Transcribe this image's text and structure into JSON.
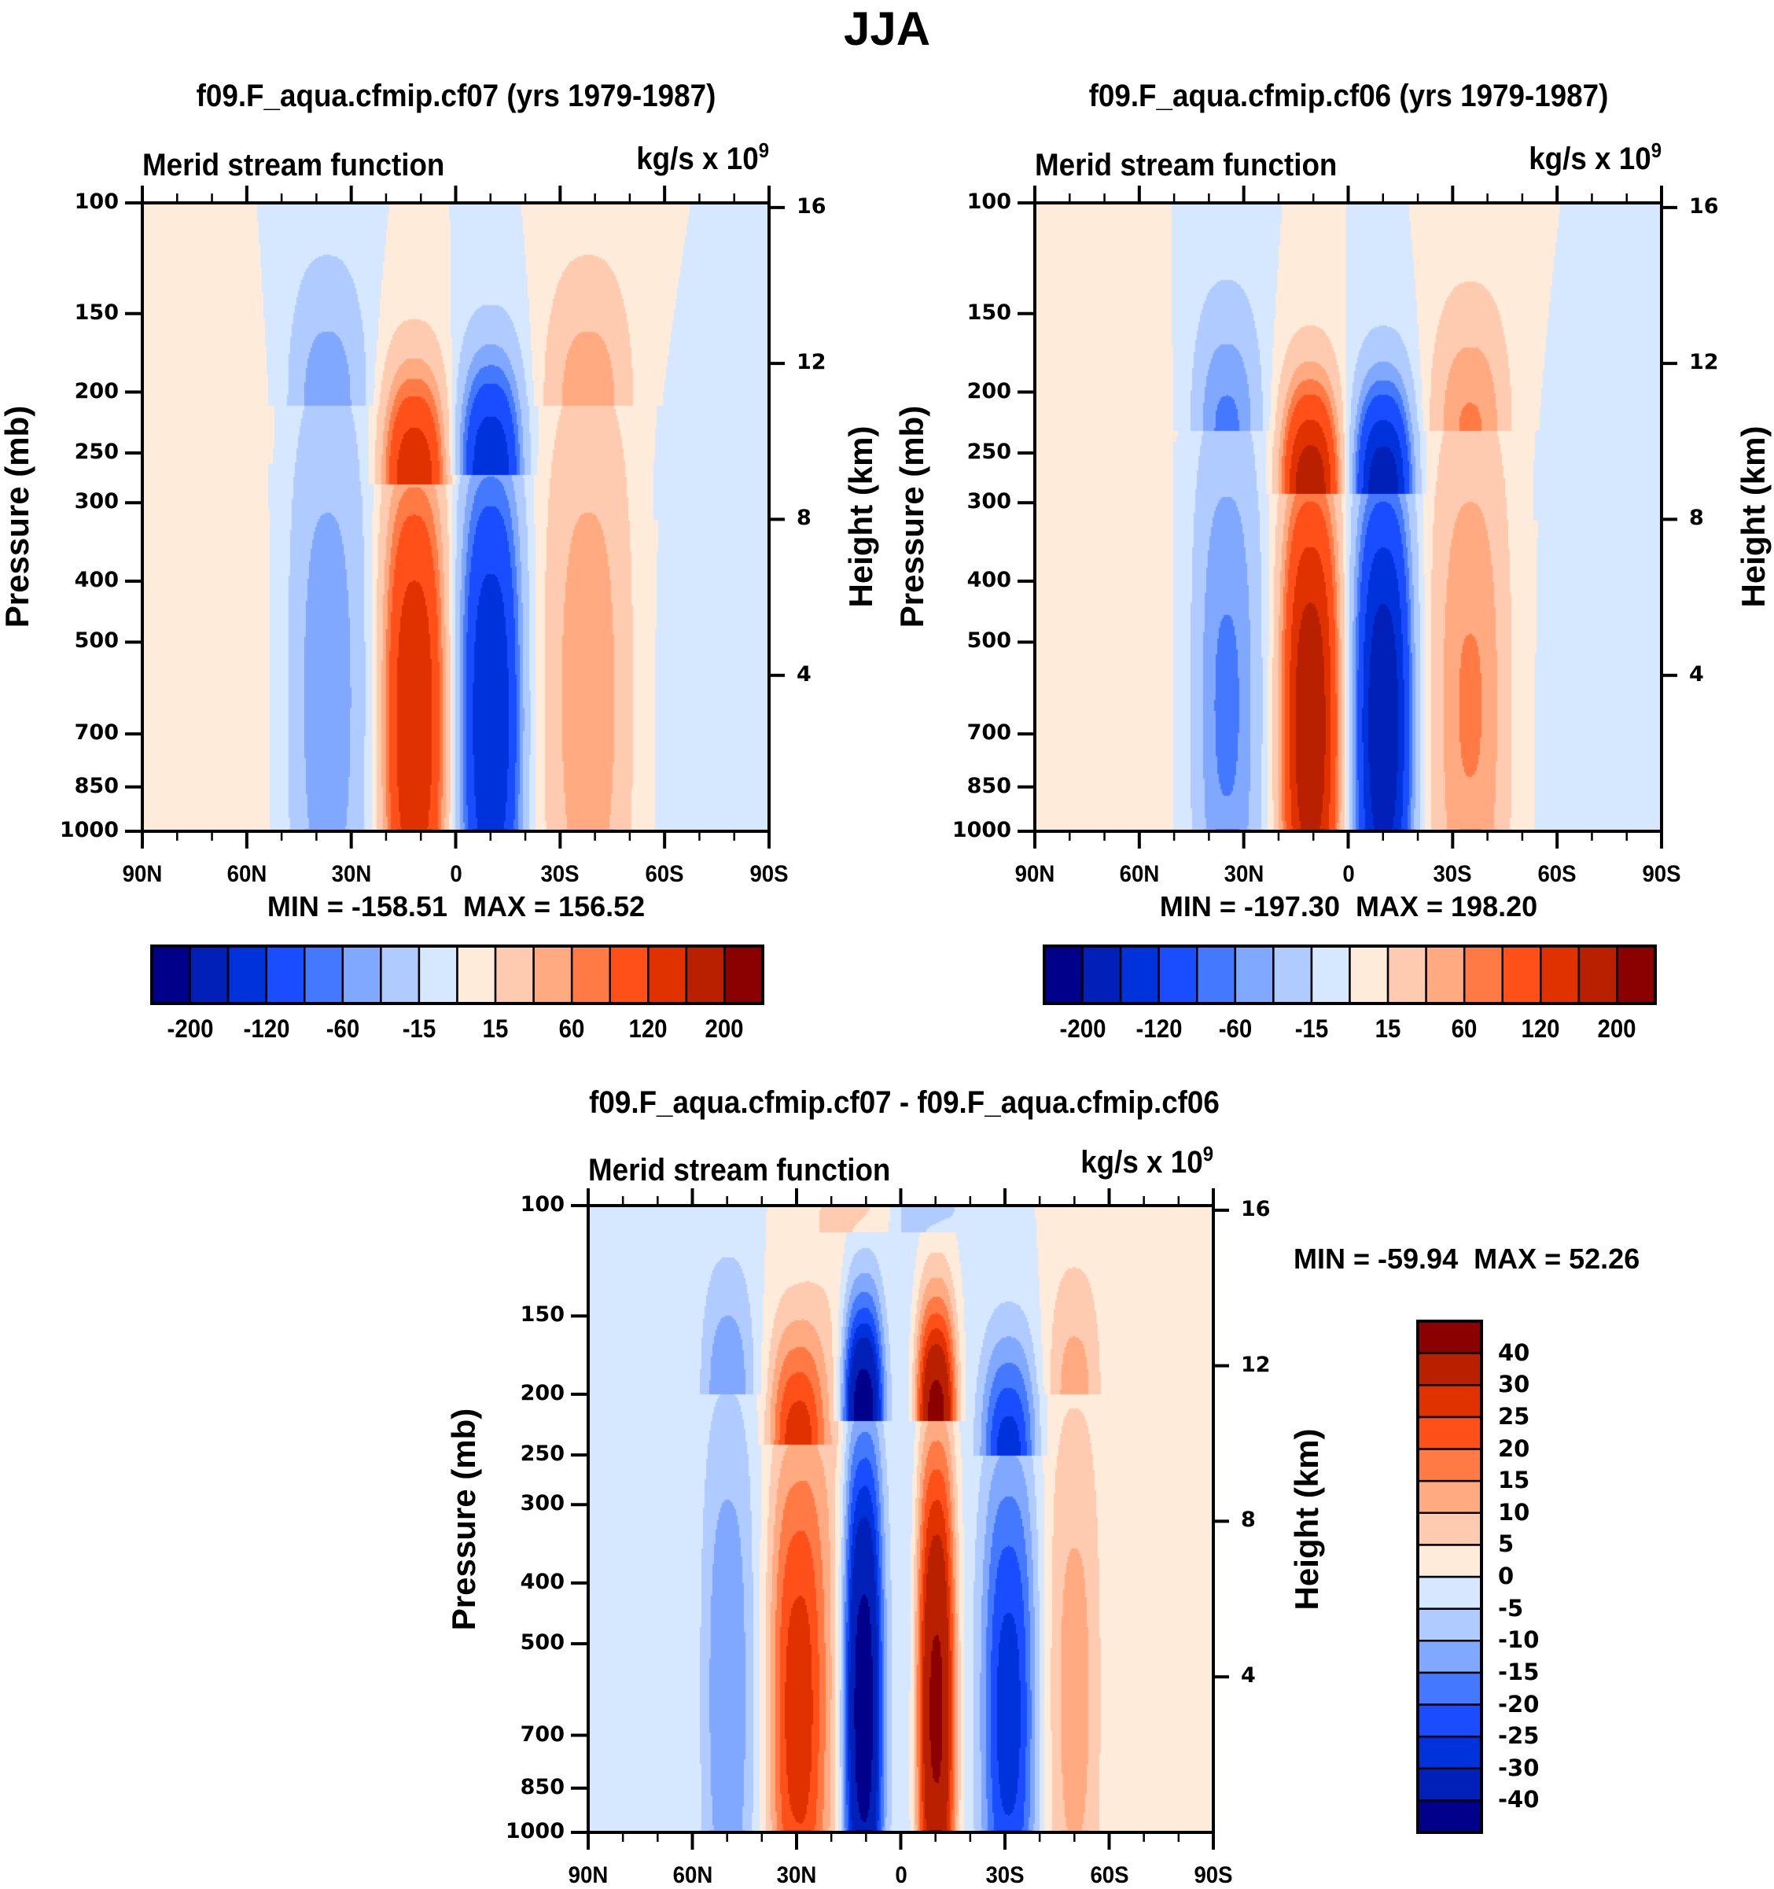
{
  "figure": {
    "main_title": "JJA"
  },
  "chart_data": [
    {
      "type": "heatmap",
      "id": "control",
      "title": "f09.F_aqua.cfmip.cf07 (yrs 1979-1987)",
      "left_string": "Merid stream function",
      "right_string_base": "kg/s x 10",
      "right_string_exp": "9",
      "xlabel": "",
      "ylabel": "Pressure (mb)",
      "ylabel_right": "Height (km)",
      "x_ticks": [
        "90N",
        "60N",
        "30N",
        "0",
        "30S",
        "60S",
        "90S"
      ],
      "x_range": [
        90,
        -90
      ],
      "y_ticks": [
        100,
        150,
        200,
        250,
        300,
        400,
        500,
        700,
        850,
        1000
      ],
      "y_range": [
        100,
        1000
      ],
      "y_scale": "log",
      "y_right_ticks": [
        16,
        12,
        8,
        4
      ],
      "min_text": "MIN = -158.51",
      "max_text": "MAX = 156.52",
      "min": -158.51,
      "max": 156.52,
      "levels": [
        -200,
        -160,
        -120,
        -80,
        -60,
        -40,
        -15,
        0,
        15,
        40,
        60,
        80,
        120,
        160,
        200
      ],
      "colorbar_labels": [
        "-200",
        "-120",
        "-60",
        "-15",
        "15",
        "60",
        "120",
        "200"
      ],
      "colorbar_orientation": "horizontal",
      "cells": [
        {
          "lat": 12,
          "p_top": 280,
          "strength": 158,
          "width": 6.5
        },
        {
          "lat": -10,
          "p_top": 270,
          "strength": -158,
          "width": 6.5
        },
        {
          "lat": 37,
          "p_top": 210,
          "strength": -55,
          "width": 8
        },
        {
          "lat": -38,
          "p_top": 210,
          "strength": 55,
          "width": 9
        },
        {
          "lat": 72,
          "p_top": 260,
          "strength": 6,
          "width": 14
        },
        {
          "lat": -75,
          "p_top": 320,
          "strength": -6,
          "width": 12
        }
      ]
    },
    {
      "type": "heatmap",
      "id": "experiment",
      "title": "f09.F_aqua.cfmip.cf06 (yrs 1979-1987)",
      "left_string": "Merid stream function",
      "right_string_base": "kg/s x 10",
      "right_string_exp": "9",
      "xlabel": "",
      "ylabel": "Pressure (mb)",
      "ylabel_right": "Height (km)",
      "x_ticks": [
        "90N",
        "60N",
        "30N",
        "0",
        "30S",
        "60S",
        "90S"
      ],
      "x_range": [
        90,
        -90
      ],
      "y_ticks": [
        100,
        150,
        200,
        250,
        300,
        400,
        500,
        700,
        850,
        1000
      ],
      "y_range": [
        100,
        1000
      ],
      "y_scale": "log",
      "y_right_ticks": [
        16,
        12,
        8,
        4
      ],
      "min_text": "MIN = -197.30",
      "max_text": "MAX = 198.20",
      "min": -197.3,
      "max": 198.2,
      "levels": [
        -200,
        -160,
        -120,
        -80,
        -60,
        -40,
        -15,
        0,
        15,
        40,
        60,
        80,
        120,
        160,
        200
      ],
      "colorbar_labels": [
        "-200",
        "-120",
        "-60",
        "-15",
        "15",
        "60",
        "120",
        "200"
      ],
      "colorbar_orientation": "horizontal",
      "cells": [
        {
          "lat": 11,
          "p_top": 290,
          "strength": 198,
          "width": 6
        },
        {
          "lat": -10,
          "p_top": 290,
          "strength": -197,
          "width": 6
        },
        {
          "lat": 35,
          "p_top": 230,
          "strength": -65,
          "width": 7
        },
        {
          "lat": -35,
          "p_top": 230,
          "strength": 63,
          "width": 8
        },
        {
          "lat": 72,
          "p_top": 240,
          "strength": 6,
          "width": 14
        },
        {
          "lat": -75,
          "p_top": 320,
          "strength": -6,
          "width": 12
        }
      ]
    },
    {
      "type": "heatmap",
      "id": "difference",
      "title": "f09.F_aqua.cfmip.cf07 - f09.F_aqua.cfmip.cf06",
      "left_string": "Merid stream function",
      "right_string_base": "kg/s x 10",
      "right_string_exp": "9",
      "xlabel": "",
      "ylabel": "Pressure (mb)",
      "ylabel_right": "Height (km)",
      "x_ticks": [
        "90N",
        "60N",
        "30N",
        "0",
        "30S",
        "60S",
        "90S"
      ],
      "x_range": [
        90,
        -90
      ],
      "y_ticks": [
        100,
        150,
        200,
        250,
        300,
        400,
        500,
        700,
        850,
        1000
      ],
      "y_range": [
        100,
        1000
      ],
      "y_scale": "log",
      "y_right_ticks": [
        16,
        12,
        8,
        4
      ],
      "min_text": "MIN = -59.94",
      "max_text": "MAX =  52.26",
      "min": -59.94,
      "max": 52.26,
      "levels": [
        -40,
        -30,
        -25,
        -20,
        -15,
        -10,
        -5,
        0,
        5,
        10,
        15,
        20,
        25,
        30,
        40
      ],
      "colorbar_labels": [
        "-40",
        "-30",
        "-25",
        "-20",
        "-15",
        "-10",
        "-5",
        "0",
        "5",
        "10",
        "15",
        "20",
        "25",
        "30",
        "40"
      ],
      "colorbar_orientation": "vertical",
      "cells": [
        {
          "lat": 30,
          "p_top": 240,
          "strength": 28,
          "width": 6
        },
        {
          "lat": 11,
          "p_top": 220,
          "strength": -55,
          "width": 4.5
        },
        {
          "lat": -10,
          "p_top": 220,
          "strength": 52,
          "width": 4.5
        },
        {
          "lat": -31,
          "p_top": 250,
          "strength": -28,
          "width": 6
        },
        {
          "lat": 50,
          "p_top": 200,
          "strength": -14,
          "width": 6
        },
        {
          "lat": -50,
          "p_top": 200,
          "strength": 12,
          "width": 6
        },
        {
          "lat": 14,
          "p_top": 110,
          "strength": 10,
          "width": 8
        },
        {
          "lat": -8,
          "p_top": 110,
          "strength": -10,
          "width": 8
        }
      ]
    }
  ],
  "colormap": [
    "#00008b",
    "#0020b8",
    "#0032dc",
    "#1a4dff",
    "#4479ff",
    "#80a8ff",
    "#b0cbff",
    "#d5e8ff",
    "#ffebd9",
    "#ffcbb0",
    "#ffaa80",
    "#ff7a44",
    "#ff501a",
    "#e03200",
    "#b82000",
    "#8b0000"
  ]
}
